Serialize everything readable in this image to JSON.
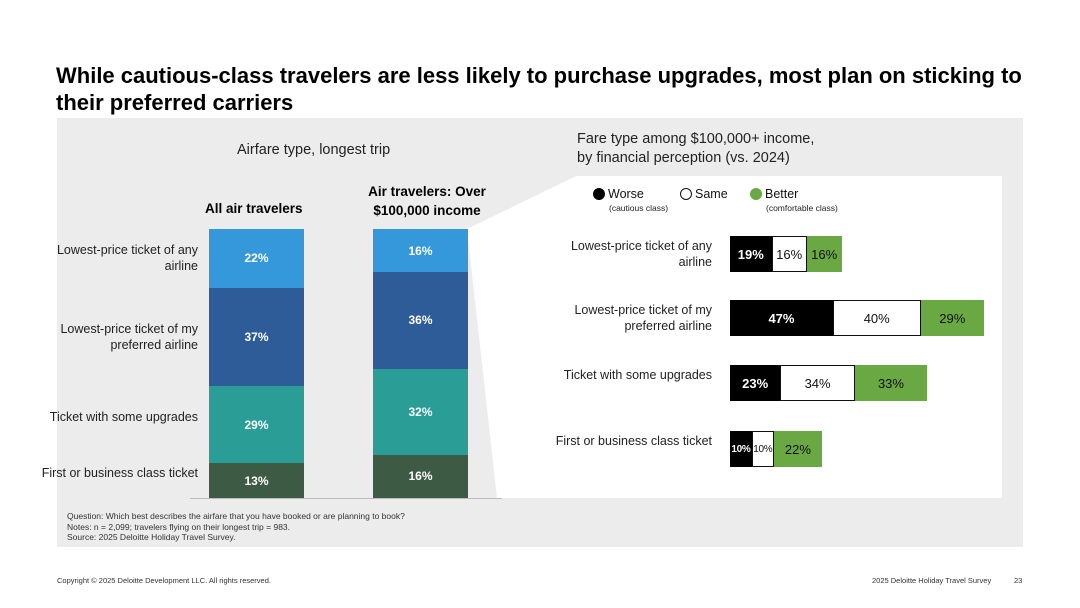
{
  "title": "While cautious-class travelers are less likely to purchase upgrades, most plan on sticking to their preferred carriers",
  "left_chart": {
    "subtitle": "Airfare type, longest trip",
    "col1_header": "All air travelers",
    "col2_header_line1": "Air travelers: Over",
    "col2_header_line2": "$100,000 income"
  },
  "right_chart": {
    "subtitle_line1": "Fare type among $100,000+ income,",
    "subtitle_line2": "by financial perception (vs. 2024)",
    "legend": [
      {
        "label": "Worse",
        "sub": "(cautious class)",
        "color": "#000000"
      },
      {
        "label": "Same",
        "sub": "",
        "color": "#ffffff"
      },
      {
        "label": "Better",
        "sub": "(comfortable class)",
        "color": "#6aa843"
      }
    ]
  },
  "chart_data": [
    {
      "type": "bar",
      "stacked": true,
      "title": "Airfare type, longest trip",
      "categories": [
        "All air travelers",
        "Air travelers: Over $100,000 income"
      ],
      "series": [
        {
          "name": "Lowest-price ticket of any airline",
          "values": [
            22,
            16
          ],
          "color": "#3498db"
        },
        {
          "name": "Lowest-price ticket of my preferred airline",
          "values": [
            37,
            36
          ],
          "color": "#2e5c99"
        },
        {
          "name": "Ticket with some upgrades",
          "values": [
            29,
            32
          ],
          "color": "#2a9d96"
        },
        {
          "name": "First or business class ticket",
          "values": [
            13,
            16
          ],
          "color": "#3d5a45"
        }
      ],
      "data_labels": [
        [
          "22%",
          "37%",
          "29%",
          "13%"
        ],
        [
          "16%",
          "36%",
          "32%",
          "16%"
        ]
      ]
    },
    {
      "type": "bar",
      "orientation": "horizontal",
      "title": "Fare type among $100,000+ income, by financial perception (vs. 2024)",
      "categories": [
        "Lowest-price ticket of any airline",
        "Lowest-price ticket of my preferred airline",
        "Ticket with some upgrades",
        "First or business class ticket"
      ],
      "series": [
        {
          "name": "Worse",
          "values": [
            19,
            47,
            23,
            10
          ],
          "labels": [
            "19%",
            "47%",
            "23%",
            "10%"
          ]
        },
        {
          "name": "Same",
          "values": [
            16,
            40,
            34,
            10
          ],
          "labels": [
            "16%",
            "40%",
            "34%",
            "10%"
          ]
        },
        {
          "name": "Better",
          "values": [
            16,
            29,
            33,
            22
          ],
          "labels": [
            "16%",
            "29%",
            "33%",
            "22%"
          ]
        }
      ]
    }
  ],
  "notes": {
    "line1": "Question: Which best describes the airfare that you have booked or are planning to book?",
    "line2": "Notes: n = 2,099; travelers flying on their longest trip = 983.",
    "line3": "Source: 2025 Deloitte Holiday Travel Survey."
  },
  "footer": {
    "copyright": "Copyright © 2025 Deloitte Development LLC. All rights reserved.",
    "report": "2025 Deloitte Holiday Travel Survey",
    "page": "23"
  }
}
